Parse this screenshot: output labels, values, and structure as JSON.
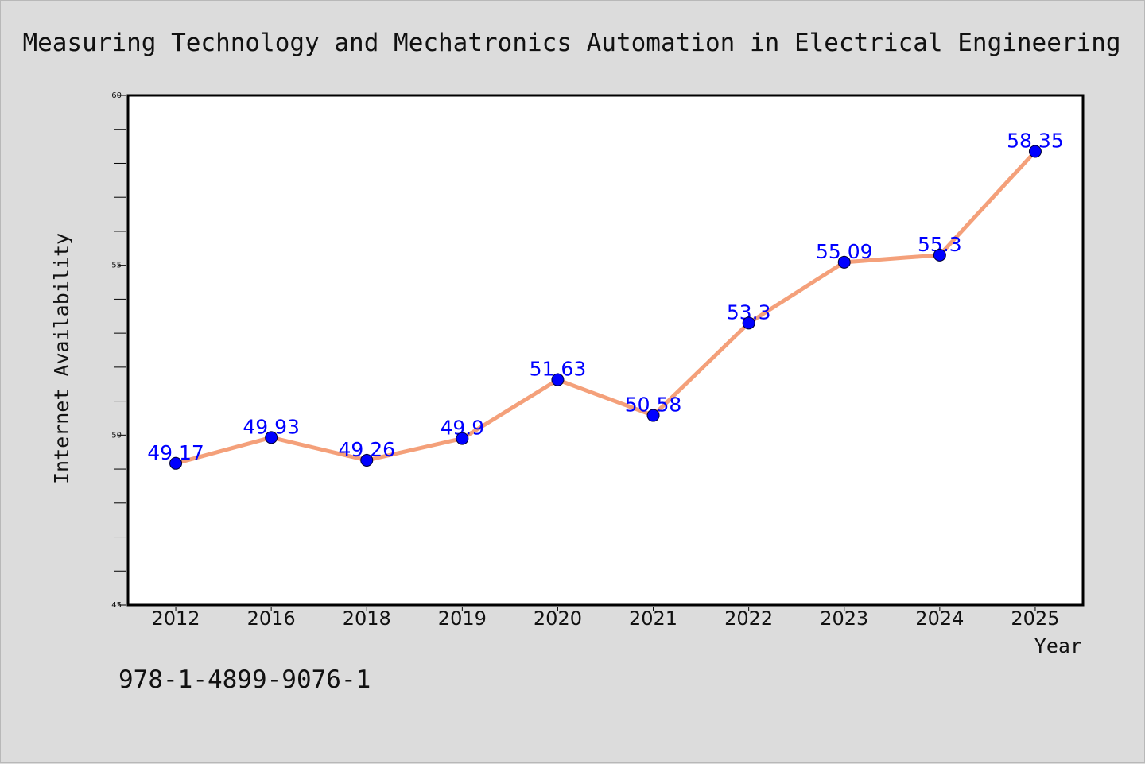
{
  "chart_data": {
    "type": "line",
    "title": "Measuring Technology and Mechatronics Automation in Electrical Engineering",
    "xlabel": "Year",
    "ylabel": "Internet Availability",
    "categories": [
      "2012",
      "2016",
      "2018",
      "2019",
      "2020",
      "2021",
      "2022",
      "2023",
      "2024",
      "2025"
    ],
    "series": [
      {
        "values": [
          49.17,
          49.93,
          49.26,
          49.9,
          51.63,
          50.58,
          53.3,
          55.09,
          55.3,
          58.35
        ],
        "labels": [
          "49.17",
          "49.93",
          "49.26",
          "49.9",
          "51.63",
          "50.58",
          "53.3",
          "55.09",
          "55.3",
          "58.35"
        ]
      }
    ],
    "ylim": [
      45,
      60
    ],
    "yticks": [
      "45",
      "50",
      "55",
      "60"
    ],
    "grid": false,
    "legend": "none"
  },
  "footer": {
    "isbn": "978-1-4899-9076-1"
  },
  "colors": {
    "background": "#dcdcdc",
    "plot_background": "#ffffff",
    "line": "#f4a07a",
    "marker": "#0000ff",
    "data_label": "#0000ff"
  }
}
